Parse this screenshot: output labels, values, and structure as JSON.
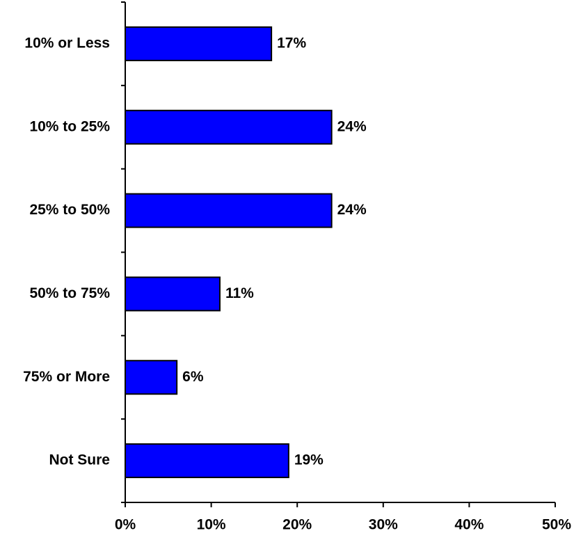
{
  "chart_data": {
    "type": "bar",
    "orientation": "horizontal",
    "title": "",
    "xlabel": "",
    "ylabel": "",
    "categories": [
      "10% or Less",
      "10% to 25%",
      "25% to 50%",
      "50% to 75%",
      "75% or More",
      "Not Sure"
    ],
    "values": [
      17,
      24,
      24,
      11,
      6,
      19
    ],
    "value_labels": [
      "17%",
      "24%",
      "24%",
      "11%",
      "6%",
      "19%"
    ],
    "xlim": [
      0,
      50
    ],
    "x_ticks": [
      0,
      10,
      20,
      30,
      40,
      50
    ],
    "x_tick_labels": [
      "0%",
      "10%",
      "20%",
      "30%",
      "40%",
      "50%"
    ],
    "grid": false,
    "legend": "none",
    "bar_color": "#0000FF",
    "bar_edge_color": "#000000"
  }
}
